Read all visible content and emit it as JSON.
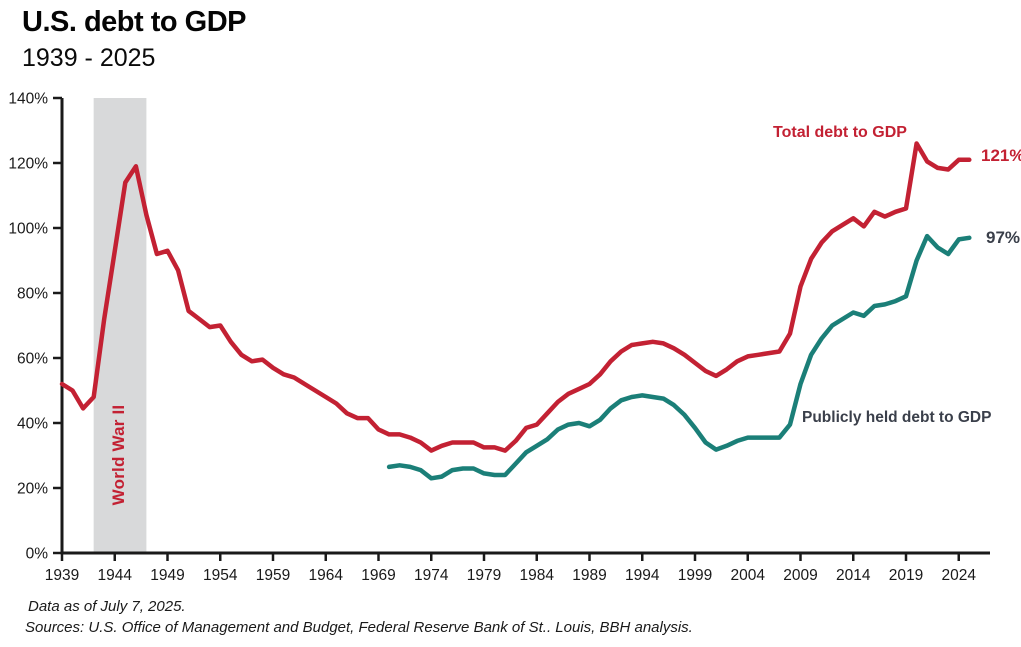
{
  "header": {
    "title": "U.S. debt to GDP",
    "subtitle": "1939 - 2025"
  },
  "annotations": {
    "total_line_label": "Total debt to GDP",
    "total_end_value": "121%",
    "public_line_label": "Publicly held debt to GDP",
    "public_end_value": "97%",
    "band_label": "World War II"
  },
  "footer": {
    "line1": "Data as of July 7, 2025.",
    "line2": "Sources: U.S. Office of Management and Budget, Federal Reserve Bank of St.. Louis, BBH analysis."
  },
  "colors": {
    "total_line": "#c32133",
    "public_line": "#1b7f78",
    "band_fill": "#d8d9da",
    "axis": "#1a1a1a",
    "tick_label": "#1a1a1a",
    "dark_label": "#3a3f4a"
  },
  "chart_data": {
    "type": "line",
    "title": "U.S. debt to GDP",
    "subtitle": "1939 - 2025",
    "xlabel": "",
    "ylabel": "",
    "grid": false,
    "legend_position": "inline-annotations",
    "xlim": [
      1939,
      2027
    ],
    "ylim": [
      0,
      140
    ],
    "x_ticks": [
      1939,
      1944,
      1949,
      1954,
      1959,
      1964,
      1969,
      1974,
      1979,
      1984,
      1989,
      1994,
      1999,
      2004,
      2009,
      2014,
      2019,
      2024
    ],
    "y_ticks": [
      0,
      20,
      40,
      60,
      80,
      100,
      120,
      140
    ],
    "y_tick_labels": [
      "0%",
      "20%",
      "40%",
      "60%",
      "80%",
      "100%",
      "120%",
      "140%"
    ],
    "band": {
      "label": "World War II",
      "from": 1942,
      "to": 1947
    },
    "series": [
      {
        "name": "Total debt to GDP",
        "color": "#c32133",
        "end_label": "121%",
        "start_year": 1939,
        "values": [
          52,
          50,
          44.5,
          48,
          72,
          93,
          114,
          119,
          104,
          92,
          93,
          87,
          74.5,
          72,
          69.5,
          70,
          65,
          61,
          59,
          59.5,
          57,
          55,
          54,
          52,
          50,
          48,
          46,
          43,
          41.5,
          41.5,
          38,
          36.5,
          36.5,
          35.5,
          34,
          31.5,
          33,
          34,
          34,
          34,
          32.5,
          32.5,
          31.5,
          34.5,
          38.5,
          39.5,
          43,
          46.5,
          49,
          50.5,
          52,
          55,
          59,
          62,
          64,
          64.5,
          65,
          64.5,
          63,
          61,
          58.5,
          56,
          54.5,
          56.5,
          59,
          60.5,
          61,
          61.5,
          62,
          67.5,
          82,
          90.5,
          95.5,
          99,
          101,
          103,
          100.5,
          105,
          103.5,
          105,
          106,
          126,
          120.5,
          118.5,
          118,
          121,
          121
        ]
      },
      {
        "name": "Publicly held debt to GDP",
        "color": "#1b7f78",
        "end_label": "97%",
        "start_year": 1970,
        "values": [
          26.5,
          27,
          26.5,
          25.5,
          23,
          23.5,
          25.5,
          26,
          26,
          24.5,
          24,
          24,
          27.5,
          31,
          33,
          35,
          38,
          39.5,
          40,
          39,
          41,
          44.5,
          47,
          48,
          48.5,
          48,
          47.5,
          45.5,
          42.5,
          38.5,
          34,
          31.8,
          33,
          34.5,
          35.5,
          35.5,
          35.5,
          35.5,
          39.5,
          52,
          61,
          66,
          70,
          72,
          74,
          73,
          76,
          76.5,
          77.5,
          79,
          90,
          97.5,
          94,
          92,
          96.5,
          97
        ]
      }
    ]
  }
}
